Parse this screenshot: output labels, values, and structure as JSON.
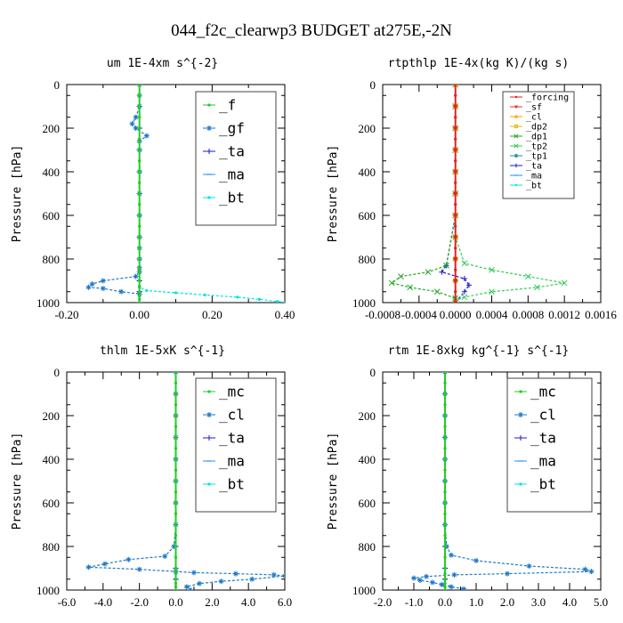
{
  "figure_title": "044_f2c_clearwp3  BUDGET at275E,-2N",
  "chart_data": [
    {
      "type": "line",
      "title": "um  1E-4xm s^{-2}",
      "ylabel": "Pressure [hPa]",
      "xlabel": "",
      "xlim": [
        -0.2,
        0.4
      ],
      "ylim": [
        1000,
        0
      ],
      "xticks": [
        -0.2,
        0.0,
        0.2,
        0.4
      ],
      "xtick_labels": [
        "-0.20",
        "0.00",
        "0.20",
        "0.40"
      ],
      "yticks": [
        0,
        200,
        400,
        600,
        800,
        1000
      ],
      "ytick_labels": [
        "0",
        "200",
        "400",
        "600",
        "800",
        "1000"
      ],
      "legend_position": "top-right",
      "series": [
        {
          "name": "_f",
          "color": "#22cc22",
          "marker": "o",
          "x": [
            0,
            0,
            0,
            0,
            0,
            0,
            0,
            0,
            0,
            0,
            0,
            0,
            0,
            0,
            0,
            0,
            0,
            0,
            0,
            0,
            0,
            0,
            0,
            0
          ],
          "y": [
            0,
            50,
            100,
            150,
            200,
            250,
            300,
            350,
            400,
            450,
            500,
            550,
            600,
            650,
            700,
            750,
            800,
            850,
            900,
            925,
            950,
            970,
            985,
            1000
          ]
        },
        {
          "name": "_gf",
          "color": "#1e78c8",
          "marker": "star",
          "x": [
            0,
            0,
            0,
            -0.01,
            -0.02,
            -0.01,
            0.02,
            0.0,
            0,
            0,
            0,
            0,
            0,
            0,
            0,
            0,
            0.0,
            -0.01,
            -0.1,
            -0.13,
            -0.14,
            -0.1,
            -0.05,
            0.0
          ],
          "y": [
            0,
            50,
            100,
            150,
            180,
            200,
            235,
            260,
            300,
            400,
            500,
            600,
            700,
            750,
            800,
            840,
            860,
            880,
            900,
            915,
            930,
            935,
            950,
            960
          ]
        },
        {
          "name": "_ta",
          "color": "#1a1acc",
          "marker": "plus",
          "x": [
            0,
            0,
            0,
            0,
            0,
            0,
            0,
            0,
            0,
            0,
            0,
            0
          ],
          "y": [
            0,
            100,
            200,
            300,
            400,
            500,
            600,
            700,
            800,
            900,
            950,
            1000
          ]
        },
        {
          "name": "_ma",
          "color": "#1e90ff",
          "marker": "dash",
          "x": [
            0,
            0,
            0,
            0,
            0,
            0,
            0,
            0,
            0,
            0,
            0,
            0
          ],
          "y": [
            0,
            100,
            200,
            300,
            400,
            500,
            600,
            700,
            800,
            900,
            950,
            1000
          ]
        },
        {
          "name": "_bt",
          "color": "#00e5e5",
          "marker": "o",
          "x": [
            0,
            0,
            0,
            0,
            0,
            0,
            0,
            0,
            0,
            0,
            0,
            0,
            0.02,
            0.1,
            0.18,
            0.27,
            0.33,
            0.38,
            0.4
          ],
          "y": [
            0,
            100,
            200,
            300,
            400,
            500,
            600,
            700,
            800,
            850,
            900,
            930,
            945,
            955,
            965,
            975,
            985,
            995,
            1000
          ]
        }
      ]
    },
    {
      "type": "line",
      "title": "rtpthlp  1E-4x(kg K)/(kg s)",
      "ylabel": "Pressure [hPa]",
      "xlabel": "",
      "xlim": [
        -0.0008,
        0.0016
      ],
      "ylim": [
        1000,
        0
      ],
      "xticks": [
        -0.0008,
        -0.0004,
        0.0,
        0.0004,
        0.0008,
        0.0012,
        0.0016
      ],
      "xtick_labels": [
        "-0.0008",
        "-0.0004",
        "0.0000",
        "0.0004",
        "0.0008",
        "0.0012",
        "0.0016"
      ],
      "yticks": [
        0,
        200,
        400,
        600,
        800,
        1000
      ],
      "ytick_labels": [
        "0",
        "200",
        "400",
        "600",
        "800",
        "1000"
      ],
      "legend_position": "top-right",
      "series": [
        {
          "name": "_forcing",
          "color": "#dd2222",
          "marker": "o",
          "x": [
            0,
            0,
            0,
            0,
            0,
            0,
            0,
            0,
            0,
            0,
            0,
            0,
            0,
            0,
            0,
            0,
            0,
            0,
            0,
            0,
            0
          ],
          "y": [
            0,
            50,
            100,
            150,
            200,
            250,
            300,
            350,
            400,
            450,
            500,
            550,
            600,
            650,
            700,
            750,
            800,
            850,
            900,
            950,
            1000
          ]
        },
        {
          "name": "_sf",
          "color": "#ee3333",
          "marker": "v",
          "x": [
            0,
            0,
            0,
            0,
            0,
            0,
            0,
            0,
            0,
            0,
            0
          ],
          "y": [
            0,
            100,
            200,
            300,
            400,
            500,
            600,
            700,
            800,
            900,
            1000
          ]
        },
        {
          "name": "_cl",
          "color": "#ff9900",
          "marker": "^",
          "x": [
            0,
            0,
            0,
            0,
            0,
            0,
            0,
            0,
            0,
            0,
            0
          ],
          "y": [
            0,
            100,
            200,
            300,
            400,
            500,
            600,
            700,
            800,
            900,
            1000
          ]
        },
        {
          "name": "_dp2",
          "color": "#ddbb00",
          "marker": "square",
          "x": [
            0,
            0,
            0,
            0,
            0,
            0,
            0,
            0,
            0,
            0,
            0
          ],
          "y": [
            0,
            100,
            200,
            300,
            400,
            500,
            600,
            700,
            800,
            900,
            1000
          ]
        },
        {
          "name": "_dp1",
          "color": "#22aa22",
          "marker": "x",
          "x": [
            0,
            0,
            0,
            0,
            0,
            0,
            0,
            -0.0001,
            -0.0003,
            -0.0006,
            -0.0007,
            -0.0005,
            -0.0002,
            0,
            0
          ],
          "y": [
            0,
            100,
            200,
            300,
            400,
            500,
            600,
            830,
            860,
            880,
            910,
            930,
            950,
            980,
            1000
          ]
        },
        {
          "name": "_tp2",
          "color": "#33cc55",
          "marker": "x",
          "x": [
            0,
            0,
            0,
            0,
            0,
            0,
            0,
            0,
            0.0001,
            0.0004,
            0.0008,
            0.0012,
            0.0009,
            0.0004,
            0.0001,
            0,
            0
          ],
          "y": [
            0,
            100,
            200,
            300,
            400,
            500,
            600,
            700,
            820,
            850,
            880,
            910,
            930,
            950,
            975,
            990,
            1000
          ]
        },
        {
          "name": "_tp1",
          "color": "#2288aa",
          "marker": "star",
          "x": [
            0,
            0,
            0,
            0,
            0,
            0,
            0,
            0,
            0,
            0,
            0
          ],
          "y": [
            0,
            100,
            200,
            300,
            400,
            500,
            600,
            700,
            800,
            900,
            1000
          ]
        },
        {
          "name": "_ta",
          "color": "#1a1acc",
          "marker": "plus",
          "x": [
            0,
            0,
            0,
            0,
            0,
            0,
            0,
            -0.0001,
            -0.00015,
            0.0001,
            0.00015,
            0.0001,
            0
          ],
          "y": [
            0,
            100,
            200,
            300,
            400,
            500,
            600,
            830,
            860,
            890,
            920,
            950,
            1000
          ]
        },
        {
          "name": "_ma",
          "color": "#1e90ff",
          "marker": "dash",
          "x": [
            0,
            0,
            0,
            0,
            0,
            0,
            0,
            0,
            0,
            0,
            0
          ],
          "y": [
            0,
            100,
            200,
            300,
            400,
            500,
            600,
            700,
            800,
            900,
            1000
          ]
        },
        {
          "name": "_bt",
          "color": "#00e5e5",
          "marker": "o",
          "x": [
            0,
            0,
            0,
            0,
            0,
            0,
            0,
            0,
            0,
            0,
            0
          ],
          "y": [
            0,
            100,
            200,
            300,
            400,
            500,
            600,
            700,
            800,
            900,
            1000
          ]
        }
      ]
    },
    {
      "type": "line",
      "title": "thlm  1E-5xK s^{-1}",
      "ylabel": "Pressure [hPa]",
      "xlabel": "",
      "xlim": [
        -6.0,
        6.0
      ],
      "ylim": [
        1000,
        0
      ],
      "xticks": [
        -6.0,
        -4.0,
        -2.0,
        0.0,
        2.0,
        4.0,
        6.0
      ],
      "xtick_labels": [
        "-6.0",
        "-4.0",
        "-2.0",
        "0.0",
        "2.0",
        "4.0",
        "6.0"
      ],
      "yticks": [
        0,
        200,
        400,
        600,
        800,
        1000
      ],
      "ytick_labels": [
        "0",
        "200",
        "400",
        "600",
        "800",
        "1000"
      ],
      "legend_position": "top-right",
      "series": [
        {
          "name": "_mc",
          "color": "#22cc22",
          "marker": "o",
          "x": [
            0,
            0,
            0,
            0,
            0,
            0,
            0,
            0,
            0,
            0,
            0,
            0,
            0,
            0,
            0,
            0,
            0,
            0,
            0,
            0,
            0,
            0,
            0,
            0
          ],
          "y": [
            0,
            50,
            100,
            150,
            200,
            250,
            300,
            350,
            400,
            450,
            500,
            550,
            600,
            650,
            700,
            750,
            800,
            850,
            900,
            925,
            950,
            970,
            985,
            1000
          ]
        },
        {
          "name": "_cl",
          "color": "#1e78c8",
          "marker": "star",
          "x": [
            0,
            0,
            0,
            0,
            0,
            0,
            0,
            0,
            -0.1,
            -0.6,
            -2.6,
            -3.9,
            -4.8,
            -2.0,
            0.0,
            1.0,
            3.3,
            5.4,
            6.0,
            4.2,
            2.5,
            1.3,
            0.6,
            0.8
          ],
          "y": [
            0,
            100,
            200,
            300,
            400,
            500,
            600,
            700,
            800,
            845,
            860,
            880,
            895,
            905,
            915,
            920,
            925,
            930,
            935,
            950,
            960,
            970,
            985,
            1000
          ]
        },
        {
          "name": "_ta",
          "color": "#1a1acc",
          "marker": "plus",
          "x": [
            0,
            0,
            0,
            0,
            0,
            0,
            0,
            0,
            0,
            0,
            0,
            0
          ],
          "y": [
            0,
            100,
            200,
            300,
            400,
            500,
            600,
            700,
            800,
            900,
            950,
            1000
          ]
        },
        {
          "name": "_ma",
          "color": "#1e90ff",
          "marker": "dash",
          "x": [
            0,
            0,
            0,
            0,
            0,
            0,
            0,
            0,
            0,
            0,
            0,
            0
          ],
          "y": [
            0,
            100,
            200,
            300,
            400,
            500,
            600,
            700,
            800,
            900,
            950,
            1000
          ]
        },
        {
          "name": "_bt",
          "color": "#00e5e5",
          "marker": "o",
          "x": [
            0,
            0,
            0,
            0,
            0,
            0,
            0,
            0,
            0,
            0,
            0,
            0
          ],
          "y": [
            0,
            100,
            200,
            300,
            400,
            500,
            600,
            700,
            800,
            900,
            950,
            1000
          ]
        }
      ]
    },
    {
      "type": "line",
      "title": "rtm  1E-8xkg kg^{-1} s^{-1}",
      "ylabel": "Pressure [hPa]",
      "xlabel": "",
      "xlim": [
        -2.0,
        5.0
      ],
      "ylim": [
        1000,
        0
      ],
      "xticks": [
        -2.0,
        -1.0,
        0.0,
        1.0,
        2.0,
        3.0,
        4.0,
        5.0
      ],
      "xtick_labels": [
        "-2.0",
        "-1.0",
        "0.0",
        "1.0",
        "2.0",
        "3.0",
        "4.0",
        "5.0"
      ],
      "yticks": [
        0,
        200,
        400,
        600,
        800,
        1000
      ],
      "ytick_labels": [
        "0",
        "200",
        "400",
        "600",
        "800",
        "1000"
      ],
      "legend_position": "top-right",
      "series": [
        {
          "name": "_mc",
          "color": "#22cc22",
          "marker": "o",
          "x": [
            0,
            0,
            0,
            0,
            0,
            0,
            0,
            0,
            0,
            0,
            0,
            0,
            0,
            0,
            0,
            0,
            0,
            0,
            0,
            0,
            0,
            0,
            0,
            0
          ],
          "y": [
            0,
            50,
            100,
            150,
            200,
            250,
            300,
            350,
            400,
            450,
            500,
            550,
            600,
            650,
            700,
            750,
            800,
            850,
            900,
            925,
            950,
            970,
            985,
            1000
          ]
        },
        {
          "name": "_cl",
          "color": "#1e78c8",
          "marker": "star",
          "x": [
            0,
            0,
            0,
            0,
            0,
            0,
            0,
            0,
            0.05,
            0.2,
            1.0,
            2.7,
            4.5,
            4.7,
            2.0,
            0.3,
            -0.6,
            -1.0,
            -0.8,
            -0.4,
            -0.1,
            0.2,
            0.6,
            0.6
          ],
          "y": [
            0,
            100,
            200,
            300,
            400,
            500,
            600,
            700,
            800,
            840,
            865,
            890,
            905,
            915,
            925,
            930,
            938,
            945,
            955,
            965,
            975,
            985,
            995,
            1000
          ]
        },
        {
          "name": "_ta",
          "color": "#1a1acc",
          "marker": "plus",
          "x": [
            0,
            0,
            0,
            0,
            0,
            0,
            0,
            0,
            0,
            0,
            0,
            0
          ],
          "y": [
            0,
            100,
            200,
            300,
            400,
            500,
            600,
            700,
            800,
            900,
            950,
            1000
          ]
        },
        {
          "name": "_ma",
          "color": "#1e90ff",
          "marker": "dash",
          "x": [
            0,
            0,
            0,
            0,
            0,
            0,
            0,
            0,
            0,
            0,
            0,
            0
          ],
          "y": [
            0,
            100,
            200,
            300,
            400,
            500,
            600,
            700,
            800,
            900,
            950,
            1000
          ]
        },
        {
          "name": "_bt",
          "color": "#00e5e5",
          "marker": "o",
          "x": [
            0,
            0,
            0,
            0,
            0,
            0,
            0,
            0,
            0,
            0,
            0,
            0
          ],
          "y": [
            0,
            100,
            200,
            300,
            400,
            500,
            600,
            700,
            800,
            900,
            950,
            1000
          ]
        }
      ]
    }
  ]
}
